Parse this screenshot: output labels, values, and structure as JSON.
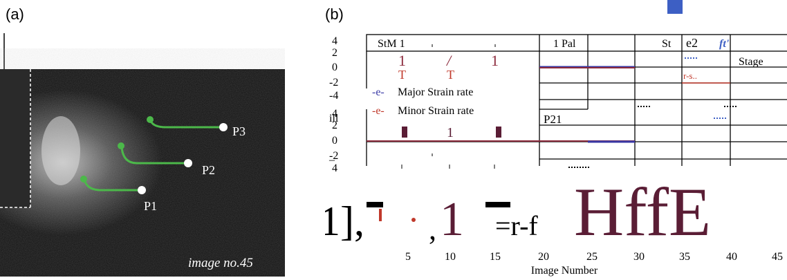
{
  "panel_a": {
    "label": "(a)",
    "caption": "image no.45",
    "points": [
      "P1",
      "P2",
      "P3"
    ]
  },
  "panel_b": {
    "label": "(b)",
    "top_labels": [
      "StM 1",
      "1 Pal",
      "St",
      "e2",
      "ft'",
      "Stage",
      "P21"
    ],
    "y_ticks_top": [
      "4",
      "2",
      "0",
      "-2",
      "-4"
    ],
    "y_ticks_bottom": [
      "4",
      "2",
      "0",
      "-2",
      "4"
    ],
    "legend": [
      {
        "symbol": "-e-",
        "text": "Major Strain rate",
        "color": "#3a3aa6"
      },
      {
        "symbol": "-e-",
        "text": "Minor Strain rate",
        "color": "#c0392b"
      }
    ],
    "garbled_text": {
      "t1": "1",
      "t2": "/",
      "t3": "1",
      "t4": "T",
      "t5": "T",
      "t6": "ill",
      "t7": "–",
      "t8": "1],",
      "t9": "r-f",
      "t10": "=r-f",
      "t11": "HffE",
      "t12": "r-s..",
      "t13": ",",
      "t14": "1"
    },
    "x_ticks": [
      "5",
      "10",
      "15",
      "20",
      "25",
      "30",
      "35",
      "40",
      "45"
    ],
    "xlabel": "Image Number"
  },
  "colors": {
    "accent_blue": "#3d5fc4",
    "dark_red": "#6b2b44",
    "red": "#c0392b",
    "green": "#4cb84a"
  }
}
